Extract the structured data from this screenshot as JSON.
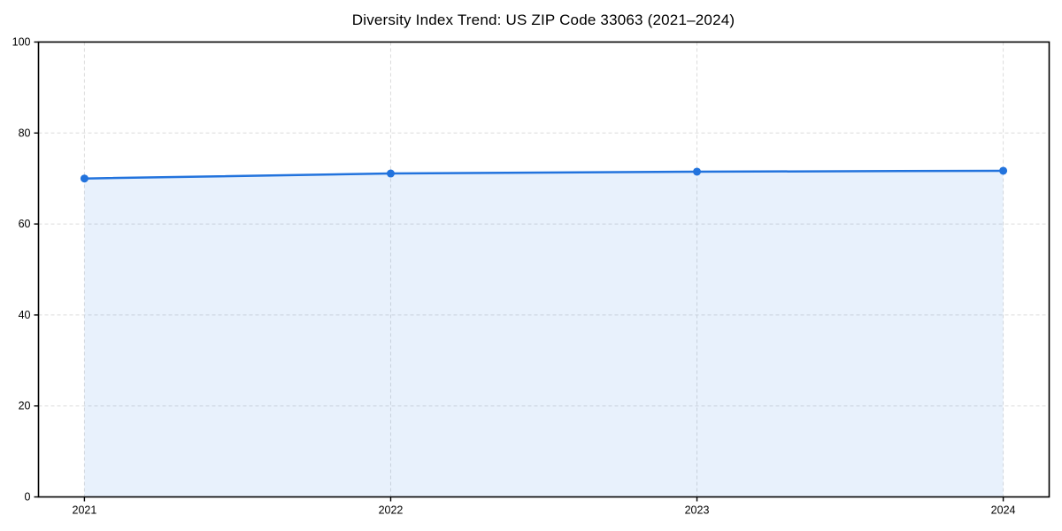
{
  "chart_data": {
    "type": "line",
    "title": "Diversity Index Trend: US ZIP Code 33063 (2021–2024)",
    "x": [
      2021,
      2022,
      2023,
      2024
    ],
    "series": [
      {
        "name": "Diversity Index",
        "values": [
          70.0,
          71.1,
          71.5,
          71.7
        ]
      }
    ],
    "xlabel": "",
    "ylabel": "",
    "xlim": [
      2020.85,
      2024.15
    ],
    "ylim": [
      0,
      100
    ],
    "xticks": [
      2021,
      2022,
      2023,
      2024
    ],
    "yticks": [
      0,
      20,
      40,
      60,
      80,
      100
    ],
    "grid": true,
    "legend": false,
    "area_fill": true,
    "marker": "circle",
    "colors": {
      "line": "#2273dd",
      "marker": "#2273dd",
      "fill_base": "#2273dd",
      "fill_alpha": 0.1,
      "grid": "#dcdcdc",
      "axis": "#000000",
      "text": "#000000",
      "background": "#ffffff"
    }
  }
}
